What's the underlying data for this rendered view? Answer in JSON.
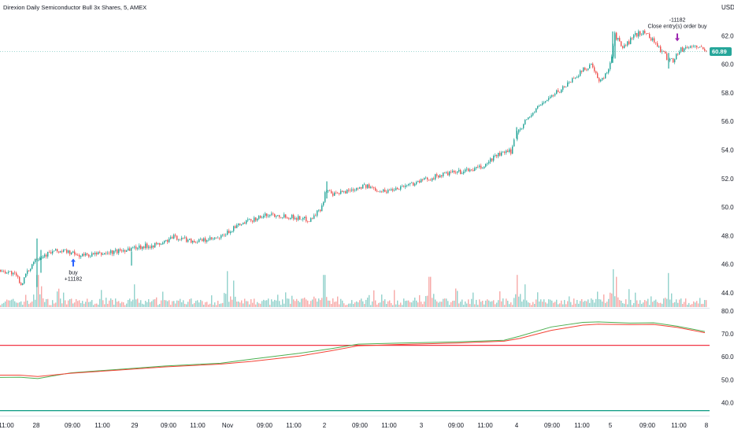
{
  "header": {
    "title": "Direxion Daily Semiconductor Bull 3x Shares, 5, AMEX",
    "currency": "USD"
  },
  "colors": {
    "up": "#26a69a",
    "down": "#ef5350",
    "price_tag": "#26a69a",
    "ma_fast": "#4caf50",
    "ma_slow": "#f44336",
    "level_upper": "#f23645",
    "level_lower": "#089981",
    "buy_marker": "#2962ff",
    "close_marker": "#9c27b0"
  },
  "chart_data": [
    {
      "type": "candlestick",
      "title": "Direxion Daily Semiconductor Bull 3x Shares, 5, AMEX",
      "x_ticks": [
        "11:00",
        "28",
        "09:00",
        "11:00",
        "29",
        "09:00",
        "11:00",
        "Nov",
        "09:00",
        "11:00",
        "2",
        "09:00",
        "11:00",
        "3",
        "09:00",
        "11:00",
        "4",
        "09:00",
        "11:00",
        "5",
        "09:00",
        "11:00",
        "8"
      ],
      "y_ticks": [
        44.0,
        46.0,
        48.0,
        50.0,
        52.0,
        54.0,
        56.0,
        58.0,
        60.0,
        62.0
      ],
      "ylim": [
        43.0,
        63.4
      ],
      "last_price": 60.89,
      "last_price_label": "60.89",
      "price_path": [
        [
          0,
          45.6
        ],
        [
          16,
          45.4
        ],
        [
          23,
          45.1
        ],
        [
          28,
          44.6
        ],
        [
          46,
          46.4
        ],
        [
          70,
          46.9
        ],
        [
          86,
          46.9
        ],
        [
          100,
          46.6
        ],
        [
          128,
          46.7
        ],
        [
          150,
          46.9
        ],
        [
          175,
          47.2
        ],
        [
          205,
          47.4
        ],
        [
          222,
          47.9
        ],
        [
          250,
          47.6
        ],
        [
          280,
          47.8
        ],
        [
          300,
          48.6
        ],
        [
          325,
          49.2
        ],
        [
          345,
          49.5
        ],
        [
          373,
          49.3
        ],
        [
          395,
          49.1
        ],
        [
          410,
          50.0
        ],
        [
          415,
          51.3
        ],
        [
          423,
          50.8
        ],
        [
          440,
          51.1
        ],
        [
          462,
          51.5
        ],
        [
          490,
          51.1
        ],
        [
          515,
          51.5
        ],
        [
          540,
          51.9
        ],
        [
          565,
          52.3
        ],
        [
          590,
          52.5
        ],
        [
          615,
          52.8
        ],
        [
          630,
          53.6
        ],
        [
          650,
          53.9
        ],
        [
          656,
          55.1
        ],
        [
          668,
          56.0
        ],
        [
          690,
          57.3
        ],
        [
          715,
          58.3
        ],
        [
          735,
          59.3
        ],
        [
          752,
          60.0
        ],
        [
          762,
          58.7
        ],
        [
          772,
          59.4
        ],
        [
          778,
          60.6
        ],
        [
          782,
          62.1
        ],
        [
          792,
          61.1
        ],
        [
          805,
          61.9
        ],
        [
          812,
          62.2
        ],
        [
          822,
          62.2
        ],
        [
          832,
          61.6
        ],
        [
          840,
          61.0
        ],
        [
          849,
          60.4
        ],
        [
          856,
          60.3
        ],
        [
          865,
          61.0
        ],
        [
          875,
          61.2
        ],
        [
          885,
          61.3
        ],
        [
          897,
          60.9
        ]
      ],
      "gaps": [
        [
          652,
          656
        ]
      ],
      "spikes": [
        {
          "x": 47,
          "high": 47.8,
          "low": 44.4
        },
        {
          "x": 52,
          "high": 47.0,
          "low": 45.4
        },
        {
          "x": 167,
          "high": 46.9,
          "low": 45.9
        },
        {
          "x": 415,
          "high": 51.8,
          "low": 50.6
        },
        {
          "x": 656,
          "high": 55.6,
          "low": 54.8
        },
        {
          "x": 778,
          "high": 62.3,
          "low": 60.1
        },
        {
          "x": 781,
          "high": 62.1,
          "low": 60.4
        },
        {
          "x": 849,
          "high": 60.8,
          "low": 59.7
        }
      ],
      "trades": [
        {
          "label_top": "buy",
          "label_bottom": "+11182",
          "x": 93,
          "price": 46.5,
          "direction": "up"
        },
        {
          "label_top": "-11182",
          "label_bottom": "Close entry(s) order buy",
          "x": 860,
          "price": 61.5,
          "direction": "down"
        }
      ],
      "volume_spikes": [
        {
          "x": 47,
          "h": 0.85
        },
        {
          "x": 52,
          "h": 0.55
        },
        {
          "x": 170,
          "h": 0.6
        },
        {
          "x": 288,
          "h": 0.95
        },
        {
          "x": 296,
          "h": 0.7
        },
        {
          "x": 411,
          "h": 0.85
        },
        {
          "x": 545,
          "h": 0.8
        },
        {
          "x": 656,
          "h": 0.85
        },
        {
          "x": 666,
          "h": 0.6
        },
        {
          "x": 778,
          "h": 1.0
        },
        {
          "x": 782,
          "h": 0.8
        },
        {
          "x": 848,
          "h": 0.9
        }
      ]
    },
    {
      "type": "line",
      "y_ticks": [
        40.0,
        50.0,
        60.0,
        70.0,
        80.0
      ],
      "ylim": [
        35.0,
        81.0
      ],
      "levels": [
        {
          "value": 65.0
        },
        {
          "value": 36.5
        }
      ],
      "series": [
        {
          "color_key": "ma_fast",
          "points": [
            [
              0,
              51.0
            ],
            [
              25,
              51.1
            ],
            [
              48,
              50.5
            ],
            [
              90,
              53.0
            ],
            [
              150,
              54.5
            ],
            [
              210,
              56.0
            ],
            [
              280,
              57.2
            ],
            [
              320,
              59.0
            ],
            [
              380,
              61.5
            ],
            [
              420,
              63.5
            ],
            [
              455,
              65.5
            ],
            [
              510,
              66.0
            ],
            [
              580,
              66.5
            ],
            [
              640,
              67.2
            ],
            [
              660,
              69.0
            ],
            [
              700,
              73.0
            ],
            [
              740,
              75.0
            ],
            [
              760,
              75.2
            ],
            [
              800,
              74.7
            ],
            [
              830,
              74.8
            ],
            [
              860,
              73.3
            ],
            [
              895,
              71.0
            ]
          ]
        },
        {
          "color_key": "ma_slow",
          "points": [
            [
              0,
              52.0
            ],
            [
              25,
              52.0
            ],
            [
              48,
              51.4
            ],
            [
              90,
              52.8
            ],
            [
              150,
              54.2
            ],
            [
              210,
              55.6
            ],
            [
              280,
              56.8
            ],
            [
              320,
              58.0
            ],
            [
              380,
              60.3
            ],
            [
              420,
              62.6
            ],
            [
              455,
              64.8
            ],
            [
              510,
              65.4
            ],
            [
              580,
              66.0
            ],
            [
              640,
              66.8
            ],
            [
              660,
              68.0
            ],
            [
              700,
              71.5
            ],
            [
              740,
              73.8
            ],
            [
              760,
              74.2
            ],
            [
              800,
              74.0
            ],
            [
              830,
              74.1
            ],
            [
              860,
              72.8
            ],
            [
              895,
              70.5
            ]
          ]
        }
      ]
    }
  ]
}
